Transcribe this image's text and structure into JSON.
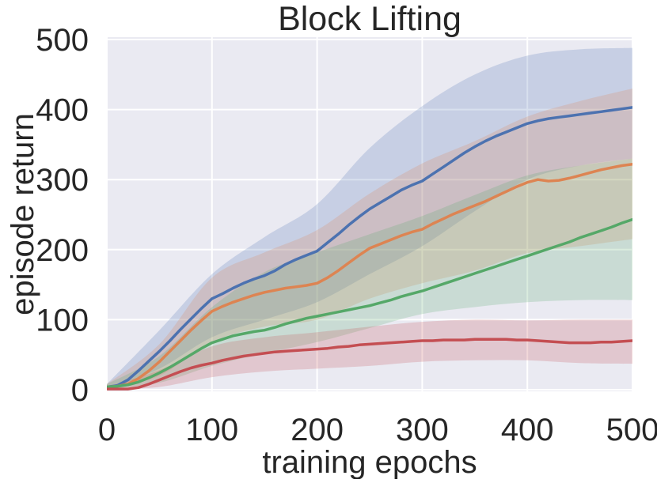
{
  "chart_data": {
    "type": "line",
    "title": "Block Lifting",
    "xlabel": "training epochs",
    "ylabel": "episode return",
    "xlim": [
      0,
      500
    ],
    "ylim": [
      0,
      500
    ],
    "x_ticks": [
      0,
      100,
      200,
      300,
      400,
      500
    ],
    "y_ticks": [
      0,
      100,
      200,
      300,
      400,
      500
    ],
    "grid": true,
    "legend": "none",
    "background": "#EAEAF2",
    "grid_color": "#FFFFFF",
    "text_color": "#262626",
    "band_alpha": 0.22,
    "x": [
      0,
      10,
      20,
      30,
      40,
      50,
      60,
      70,
      80,
      90,
      100,
      110,
      120,
      130,
      140,
      150,
      160,
      170,
      180,
      190,
      200,
      210,
      220,
      230,
      240,
      250,
      260,
      270,
      280,
      290,
      300,
      310,
      320,
      330,
      340,
      350,
      360,
      370,
      380,
      390,
      400,
      410,
      420,
      430,
      440,
      450,
      460,
      470,
      480,
      490,
      500
    ],
    "series": [
      {
        "name": "blue-curve",
        "color": "#4C72B0",
        "values": [
          4,
          6,
          14,
          27,
          41,
          55,
          70,
          86,
          101,
          116,
          130,
          137,
          145,
          152,
          158,
          163,
          170,
          179,
          186,
          192,
          198,
          210,
          222,
          235,
          247,
          258,
          267,
          276,
          285,
          292,
          298,
          308,
          318,
          328,
          338,
          347,
          355,
          362,
          368,
          374,
          380,
          384,
          387,
          389,
          391,
          393,
          395,
          397,
          399,
          401,
          403
        ]
      },
      {
        "name": "orange-curve",
        "color": "#DD8452",
        "values": [
          4,
          5,
          8,
          16,
          27,
          40,
          55,
          70,
          85,
          99,
          112,
          119,
          125,
          130,
          135,
          139,
          142,
          145,
          147,
          149,
          152,
          160,
          170,
          181,
          192,
          202,
          208,
          214,
          220,
          225,
          229,
          237,
          244,
          251,
          257,
          263,
          269,
          276,
          283,
          290,
          296,
          300,
          298,
          299,
          302,
          306,
          310,
          314,
          317,
          320,
          322
        ]
      },
      {
        "name": "green-curve",
        "color": "#55A868",
        "values": [
          4,
          5,
          7,
          11,
          17,
          24,
          32,
          41,
          50,
          59,
          67,
          72,
          77,
          80,
          83,
          85,
          89,
          94,
          98,
          102,
          105,
          108,
          111,
          114,
          117,
          120,
          124,
          128,
          133,
          137,
          141,
          146,
          151,
          156,
          161,
          166,
          171,
          176,
          181,
          186,
          191,
          196,
          201,
          206,
          211,
          217,
          222,
          227,
          232,
          238,
          243
        ]
      },
      {
        "name": "red-curve",
        "color": "#C44E52",
        "values": [
          1,
          1,
          1,
          3,
          8,
          14,
          20,
          26,
          31,
          35,
          38,
          42,
          45,
          48,
          50,
          52,
          54,
          55,
          56,
          57,
          58,
          59,
          61,
          62,
          64,
          65,
          66,
          67,
          68,
          69,
          70,
          70,
          71,
          71,
          71,
          72,
          72,
          72,
          72,
          71,
          71,
          70,
          69,
          68,
          67,
          67,
          67,
          68,
          68,
          69,
          70
        ]
      }
    ],
    "bands_x": [
      0,
      50,
      100,
      150,
      200,
      250,
      300,
      350,
      400,
      450,
      500
    ],
    "bands": [
      {
        "series": "blue-curve",
        "color": "#4C72B0",
        "upper": [
          8,
          85,
          165,
          218,
          265,
          345,
          405,
          450,
          477,
          486,
          488
        ],
        "lower": [
          1,
          30,
          75,
          100,
          125,
          165,
          205,
          255,
          300,
          320,
          330
        ]
      },
      {
        "series": "orange-curve",
        "color": "#DD8452",
        "upper": [
          8,
          65,
          160,
          196,
          228,
          280,
          323,
          355,
          390,
          412,
          430
        ],
        "lower": [
          1,
          20,
          68,
          90,
          100,
          130,
          152,
          170,
          195,
          205,
          215
        ]
      },
      {
        "series": "green-curve",
        "color": "#55A868",
        "upper": [
          8,
          48,
          118,
          168,
          196,
          222,
          248,
          278,
          306,
          320,
          330
        ],
        "lower": [
          1,
          10,
          34,
          52,
          68,
          88,
          108,
          118,
          125,
          128,
          128
        ]
      },
      {
        "series": "red-curve",
        "color": "#C44E52",
        "upper": [
          4,
          28,
          62,
          75,
          82,
          90,
          97,
          100,
          99,
          100,
          100
        ],
        "lower": [
          0,
          4,
          18,
          26,
          30,
          34,
          40,
          42,
          42,
          38,
          37
        ]
      }
    ]
  }
}
